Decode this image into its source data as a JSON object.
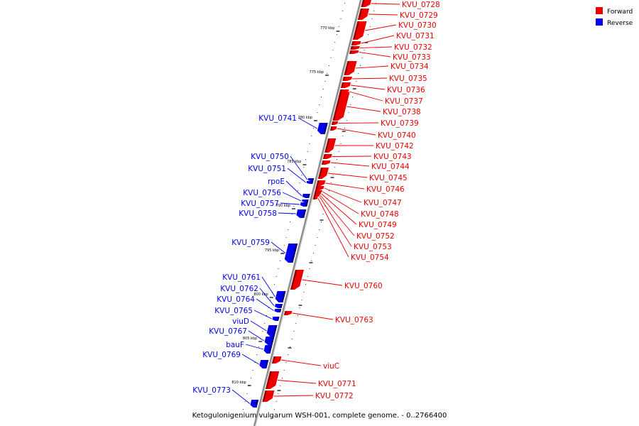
{
  "legend": {
    "forward": {
      "label": "Forward",
      "color": "#ee0000"
    },
    "reverse": {
      "label": "Reverse",
      "color": "#0000ee"
    }
  },
  "caption": "Ketogulonigenium vulgarum WSH-001, complete genome. - 0..2766400",
  "ticks": [
    {
      "label": "770 kbp"
    },
    {
      "label": "775 kbp"
    },
    {
      "label": "780 kbp"
    },
    {
      "label": "785 kbp"
    },
    {
      "label": "790 kbp"
    },
    {
      "label": "795 kbp"
    },
    {
      "label": "800 kbp"
    },
    {
      "label": "805 kbp"
    },
    {
      "label": "810 kbp"
    }
  ],
  "forward_genes": [
    {
      "label": "KVU_0728"
    },
    {
      "label": "KVU_0729"
    },
    {
      "label": "KVU_0730"
    },
    {
      "label": "KVU_0731"
    },
    {
      "label": "KVU_0732"
    },
    {
      "label": "KVU_0733"
    },
    {
      "label": "KVU_0734"
    },
    {
      "label": "KVU_0735"
    },
    {
      "label": "KVU_0736"
    },
    {
      "label": "KVU_0737"
    },
    {
      "label": "KVU_0738"
    },
    {
      "label": "KVU_0739"
    },
    {
      "label": "KVU_0740"
    },
    {
      "label": "KVU_0742"
    },
    {
      "label": "KVU_0743"
    },
    {
      "label": "KVU_0744"
    },
    {
      "label": "KVU_0745"
    },
    {
      "label": "KVU_0746"
    },
    {
      "label": "KVU_0747"
    },
    {
      "label": "KVU_0748"
    },
    {
      "label": "KVU_0749"
    },
    {
      "label": "KVU_0752"
    },
    {
      "label": "KVU_0753"
    },
    {
      "label": "KVU_0754"
    },
    {
      "label": "KVU_0760"
    },
    {
      "label": "KVU_0763"
    },
    {
      "label": "viuC"
    },
    {
      "label": "KVU_0771"
    },
    {
      "label": "KVU_0772"
    }
  ],
  "reverse_genes": [
    {
      "label": "KVU_0741"
    },
    {
      "label": "KVU_0750"
    },
    {
      "label": "KVU_0751"
    },
    {
      "label": "rpoE"
    },
    {
      "label": "KVU_0756"
    },
    {
      "label": "KVU_0757"
    },
    {
      "label": "KVU_0758"
    },
    {
      "label": "KVU_0759"
    },
    {
      "label": "KVU_0761"
    },
    {
      "label": "KVU_0762"
    },
    {
      "label": "KVU_0764"
    },
    {
      "label": "KVU_0765"
    },
    {
      "label": "viuD"
    },
    {
      "label": "KVU_0767"
    },
    {
      "label": "bauF"
    },
    {
      "label": "KVU_0769"
    },
    {
      "label": "KVU_0773"
    }
  ]
}
